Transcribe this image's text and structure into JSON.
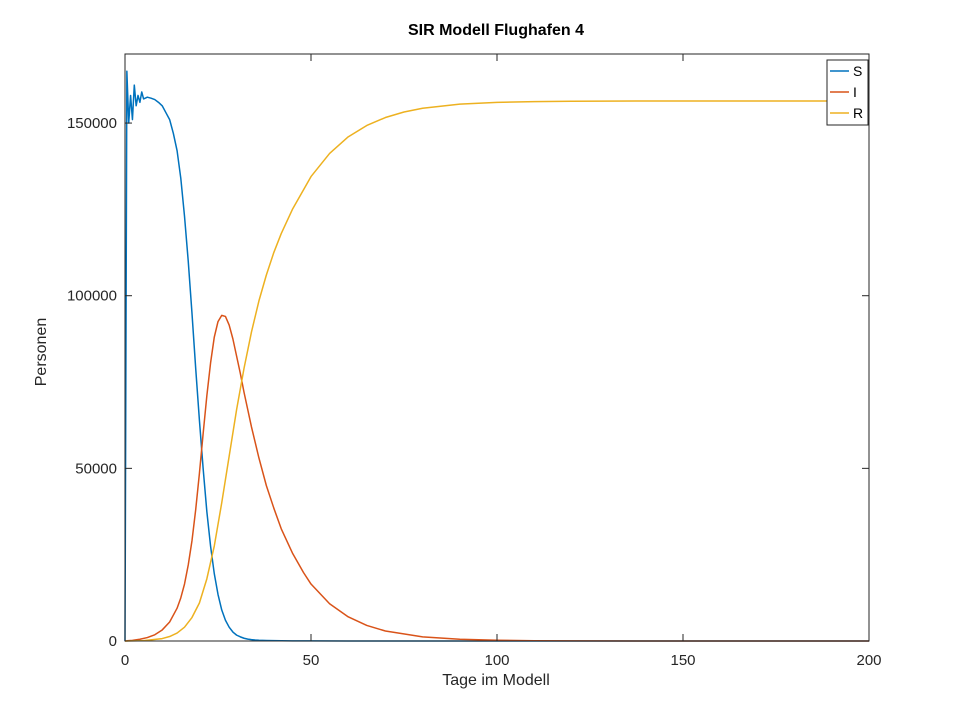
{
  "chart_data": {
    "type": "line",
    "title": "SIR Modell Flughafen 4",
    "xlabel": "Tage im Modell",
    "ylabel": "Personen",
    "xlim": [
      0,
      200
    ],
    "ylim": [
      0,
      170000
    ],
    "xticks": [
      0,
      50,
      100,
      150,
      200
    ],
    "yticks": [
      0,
      50000,
      100000,
      150000
    ],
    "grid": false,
    "legend_position": "top-right",
    "series": [
      {
        "name": "S",
        "color": "#0072BD",
        "x": [
          0,
          0.5,
          1,
          1.5,
          2,
          2.5,
          3,
          3.5,
          4,
          4.5,
          5,
          6,
          7,
          8,
          9,
          10,
          11,
          12,
          13,
          14,
          15,
          16,
          17,
          18,
          19,
          20,
          21,
          22,
          23,
          24,
          25,
          26,
          27,
          28,
          29,
          30,
          31,
          32,
          33,
          34,
          35,
          36,
          38,
          40,
          42,
          45,
          50,
          60,
          80,
          100,
          200
        ],
        "y": [
          0,
          165000,
          150000,
          158000,
          151000,
          161000,
          155000,
          158000,
          156000,
          159000,
          157000,
          157500,
          157200,
          156800,
          156000,
          155000,
          153000,
          151000,
          147000,
          142000,
          134000,
          123000,
          110000,
          95000,
          79000,
          64000,
          50000,
          37500,
          27500,
          19500,
          13500,
          9000,
          6000,
          4000,
          2600,
          1700,
          1200,
          800,
          550,
          400,
          300,
          230,
          150,
          100,
          70,
          40,
          20,
          8,
          2,
          1,
          0
        ]
      },
      {
        "name": "I",
        "color": "#D95319",
        "x": [
          0,
          2,
          4,
          6,
          8,
          10,
          12,
          14,
          15,
          16,
          17,
          18,
          19,
          20,
          21,
          22,
          23,
          24,
          25,
          26,
          27,
          28,
          29,
          30,
          31,
          32,
          33,
          34,
          35,
          36,
          38,
          40,
          42,
          45,
          48,
          50,
          55,
          60,
          65,
          70,
          80,
          90,
          100,
          110,
          120,
          140,
          160,
          200
        ],
        "y": [
          0,
          200,
          500,
          1000,
          1800,
          3200,
          5500,
          9500,
          12500,
          16500,
          22000,
          29000,
          38000,
          48500,
          60000,
          71000,
          80500,
          88000,
          92500,
          94300,
          94000,
          91500,
          87500,
          82500,
          77500,
          72000,
          67000,
          62000,
          57500,
          53000,
          45000,
          38500,
          32500,
          25500,
          19800,
          16500,
          10800,
          7000,
          4500,
          2900,
          1200,
          500,
          200,
          90,
          40,
          10,
          3,
          0
        ]
      },
      {
        "name": "R",
        "color": "#EDB120",
        "x": [
          0,
          5,
          10,
          12,
          14,
          16,
          18,
          20,
          22,
          24,
          26,
          28,
          30,
          32,
          34,
          36,
          38,
          40,
          42,
          45,
          50,
          55,
          60,
          65,
          70,
          75,
          80,
          90,
          100,
          110,
          120,
          140,
          160,
          200
        ],
        "y": [
          0,
          100,
          700,
          1300,
          2300,
          4000,
          6800,
          11000,
          18000,
          27500,
          40000,
          53500,
          67000,
          79000,
          89500,
          98500,
          106000,
          112500,
          118000,
          125000,
          134500,
          141200,
          146000,
          149300,
          151600,
          153200,
          154300,
          155500,
          156000,
          156200,
          156300,
          156400,
          156400,
          156400
        ]
      }
    ]
  }
}
